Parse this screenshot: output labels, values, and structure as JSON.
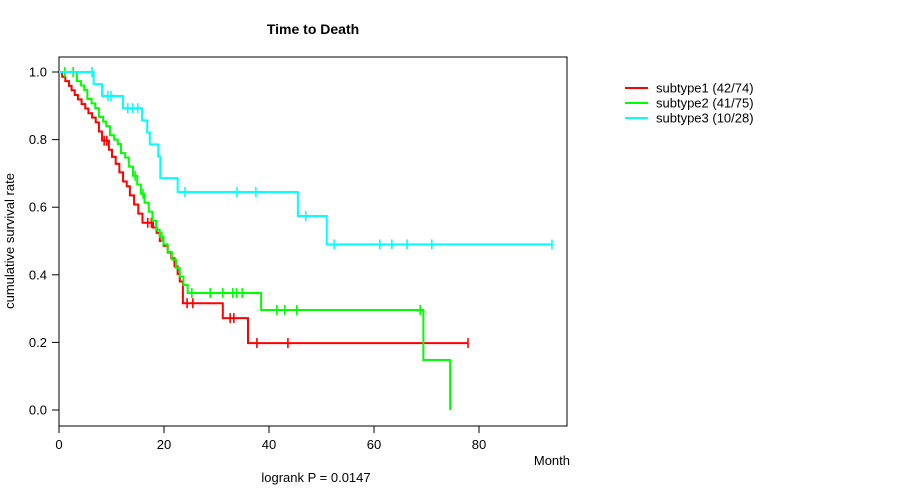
{
  "title": "Time to Death",
  "footnote": "logrank P = 0.0147",
  "y_axis": {
    "label": "cumulative survival rate",
    "ticks": [
      "0.0",
      "0.2",
      "0.4",
      "0.6",
      "0.8",
      "1.0"
    ],
    "tick_values": [
      0,
      0.2,
      0.4,
      0.6,
      0.8,
      1.0
    ],
    "range": [
      0,
      1
    ]
  },
  "x_axis": {
    "label": "Month",
    "ticks": [
      "0",
      "20",
      "40",
      "60",
      "80"
    ],
    "tick_values": [
      0,
      20,
      40,
      60,
      80
    ],
    "range": [
      0,
      96
    ]
  },
  "colors": {
    "subtype1": "#ff0000",
    "subtype2": "#00ff00",
    "subtype3": "#00ffff",
    "axis": "#000000"
  },
  "chart_data": {
    "type": "line",
    "subtype": "kaplan-meier-step",
    "title": "Time to Death",
    "xlabel": "Month",
    "ylabel": "cumulative survival rate",
    "xlim": [
      0,
      96
    ],
    "ylim": [
      0,
      1
    ],
    "grid": false,
    "legend_position": "right-outside",
    "series": [
      {
        "name": "subtype1 (42/74)",
        "color": "#ff0000",
        "end_month": 77.9,
        "steps": [
          [
            0,
            1.0
          ],
          [
            0.6,
            0.986
          ],
          [
            1.2,
            0.973
          ],
          [
            1.9,
            0.959
          ],
          [
            2.4,
            0.946
          ],
          [
            3.0,
            0.932
          ],
          [
            3.6,
            0.919
          ],
          [
            4.3,
            0.905
          ],
          [
            5.0,
            0.892
          ],
          [
            5.6,
            0.878
          ],
          [
            6.3,
            0.865
          ],
          [
            7.0,
            0.851
          ],
          [
            7.6,
            0.824
          ],
          [
            8.2,
            0.797
          ],
          [
            9.5,
            0.77
          ],
          [
            10.1,
            0.749
          ],
          [
            10.8,
            0.728
          ],
          [
            11.5,
            0.703
          ],
          [
            12.2,
            0.676
          ],
          [
            12.9,
            0.662
          ],
          [
            13.5,
            0.635
          ],
          [
            14.3,
            0.608
          ],
          [
            15.1,
            0.581
          ],
          [
            15.9,
            0.554
          ],
          [
            17.9,
            0.54
          ],
          [
            18.6,
            0.524
          ],
          [
            19.2,
            0.5
          ],
          [
            19.9,
            0.486
          ],
          [
            20.7,
            0.466
          ],
          [
            21.4,
            0.449
          ],
          [
            22.0,
            0.425
          ],
          [
            22.6,
            0.402
          ],
          [
            23.0,
            0.38
          ],
          [
            23.6,
            0.316
          ],
          [
            31.2,
            0.272
          ],
          [
            36.0,
            0.198
          ]
        ],
        "censors": [
          [
            8.6,
            0.797
          ],
          [
            9.1,
            0.797
          ],
          [
            16.9,
            0.554
          ],
          [
            17.6,
            0.554
          ],
          [
            24.4,
            0.316
          ],
          [
            25.5,
            0.316
          ],
          [
            32.6,
            0.272
          ],
          [
            33.3,
            0.272
          ],
          [
            37.7,
            0.198
          ],
          [
            43.6,
            0.198
          ],
          [
            77.9,
            0.198
          ]
        ]
      },
      {
        "name": "subtype2 (41/75)",
        "color": "#00ff00",
        "end_month": 74.5,
        "steps": [
          [
            0,
            1.0
          ],
          [
            3.4,
            0.973
          ],
          [
            4.2,
            0.96
          ],
          [
            4.8,
            0.947
          ],
          [
            5.4,
            0.92
          ],
          [
            6.2,
            0.907
          ],
          [
            6.9,
            0.893
          ],
          [
            7.6,
            0.867
          ],
          [
            8.4,
            0.853
          ],
          [
            9.0,
            0.84
          ],
          [
            9.7,
            0.813
          ],
          [
            10.5,
            0.8
          ],
          [
            11.2,
            0.787
          ],
          [
            11.8,
            0.76
          ],
          [
            12.6,
            0.747
          ],
          [
            13.3,
            0.72
          ],
          [
            14.1,
            0.693
          ],
          [
            14.9,
            0.667
          ],
          [
            15.6,
            0.64
          ],
          [
            16.3,
            0.613
          ],
          [
            17.1,
            0.587
          ],
          [
            17.8,
            0.56
          ],
          [
            18.5,
            0.533
          ],
          [
            19.2,
            0.512
          ],
          [
            19.9,
            0.49
          ],
          [
            20.7,
            0.468
          ],
          [
            21.5,
            0.445
          ],
          [
            22.3,
            0.42
          ],
          [
            23.0,
            0.395
          ],
          [
            23.7,
            0.37
          ],
          [
            24.5,
            0.346
          ],
          [
            38.5,
            0.296
          ],
          [
            69.4,
            0.148
          ],
          [
            74.5,
            0.0
          ]
        ],
        "censors": [
          [
            1.1,
            1.0
          ],
          [
            2.7,
            1.0
          ],
          [
            14.5,
            0.693
          ],
          [
            16.0,
            0.64
          ],
          [
            19.6,
            0.512
          ],
          [
            25.3,
            0.346
          ],
          [
            28.8,
            0.346
          ],
          [
            31.2,
            0.346
          ],
          [
            33.1,
            0.346
          ],
          [
            33.8,
            0.346
          ],
          [
            34.9,
            0.346
          ],
          [
            41.5,
            0.296
          ],
          [
            43.0,
            0.296
          ],
          [
            45.3,
            0.296
          ],
          [
            68.8,
            0.296
          ]
        ]
      },
      {
        "name": "subtype3 (10/28)",
        "color": "#00ffff",
        "end_month": 93.9,
        "steps": [
          [
            0,
            1.0
          ],
          [
            6.6,
            0.964
          ],
          [
            8.2,
            0.929
          ],
          [
            12.2,
            0.893
          ],
          [
            15.8,
            0.857
          ],
          [
            16.8,
            0.821
          ],
          [
            17.3,
            0.786
          ],
          [
            18.9,
            0.75
          ],
          [
            19.3,
            0.686
          ],
          [
            22.6,
            0.645
          ],
          [
            45.5,
            0.574
          ],
          [
            51.0,
            0.49
          ]
        ],
        "censors": [
          [
            6.3,
            1.0
          ],
          [
            9.3,
            0.929
          ],
          [
            9.9,
            0.929
          ],
          [
            13.1,
            0.893
          ],
          [
            14.0,
            0.893
          ],
          [
            15.0,
            0.893
          ],
          [
            24.0,
            0.645
          ],
          [
            33.9,
            0.645
          ],
          [
            37.5,
            0.645
          ],
          [
            47.0,
            0.574
          ],
          [
            52.4,
            0.49
          ],
          [
            61.1,
            0.49
          ],
          [
            63.4,
            0.49
          ],
          [
            66.3,
            0.49
          ],
          [
            71.0,
            0.49
          ],
          [
            93.9,
            0.49
          ]
        ]
      }
    ]
  }
}
